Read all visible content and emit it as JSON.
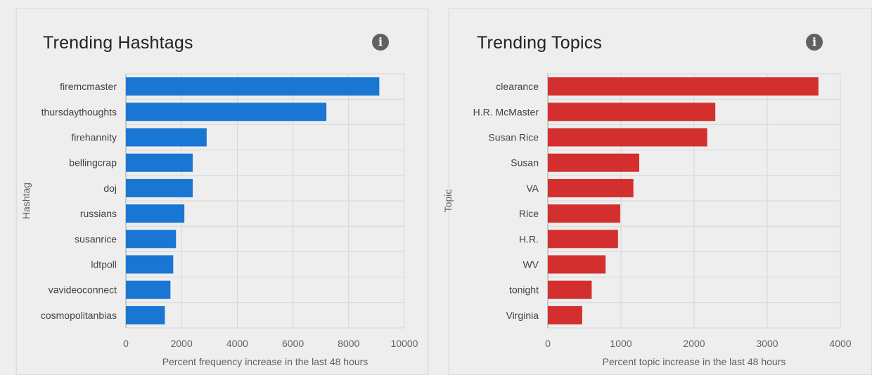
{
  "chart_data": [
    {
      "type": "bar",
      "orientation": "horizontal",
      "title": "Trending Hashtags",
      "ylabel": "Hashtag",
      "xlabel": "Percent frequency increase in the last 48 hours",
      "categories": [
        "firemcmaster",
        "thursdaythoughts",
        "firehannity",
        "bellingcrap",
        "doj",
        "russians",
        "susanrice",
        "ldtpoll",
        "vavideoconnect",
        "cosmopolitanbias"
      ],
      "values": [
        9100,
        7200,
        2900,
        2400,
        2400,
        2100,
        1800,
        1700,
        1600,
        1400
      ],
      "xlim": [
        0,
        10000
      ],
      "xticks": [
        0,
        2000,
        4000,
        6000,
        8000,
        10000
      ],
      "color": "#1976d2"
    },
    {
      "type": "bar",
      "orientation": "horizontal",
      "title": "Trending Topics",
      "ylabel": "Topic",
      "xlabel": "Percent topic increase in the last 48 hours",
      "categories": [
        "clearance",
        "H.R. McMaster",
        "Susan Rice",
        "Susan",
        "VA",
        "Rice",
        "H.R.",
        "WV",
        "tonight",
        "Virginia"
      ],
      "values": [
        3700,
        2290,
        2180,
        1250,
        1170,
        990,
        960,
        790,
        600,
        470
      ],
      "xlim": [
        0,
        4000
      ],
      "xticks": [
        0,
        1000,
        2000,
        3000,
        4000
      ],
      "color": "#d32f2f"
    }
  ],
  "ui": {
    "left_title": "Trending Hashtags",
    "right_title": "Trending Topics",
    "info_glyph": "i"
  }
}
